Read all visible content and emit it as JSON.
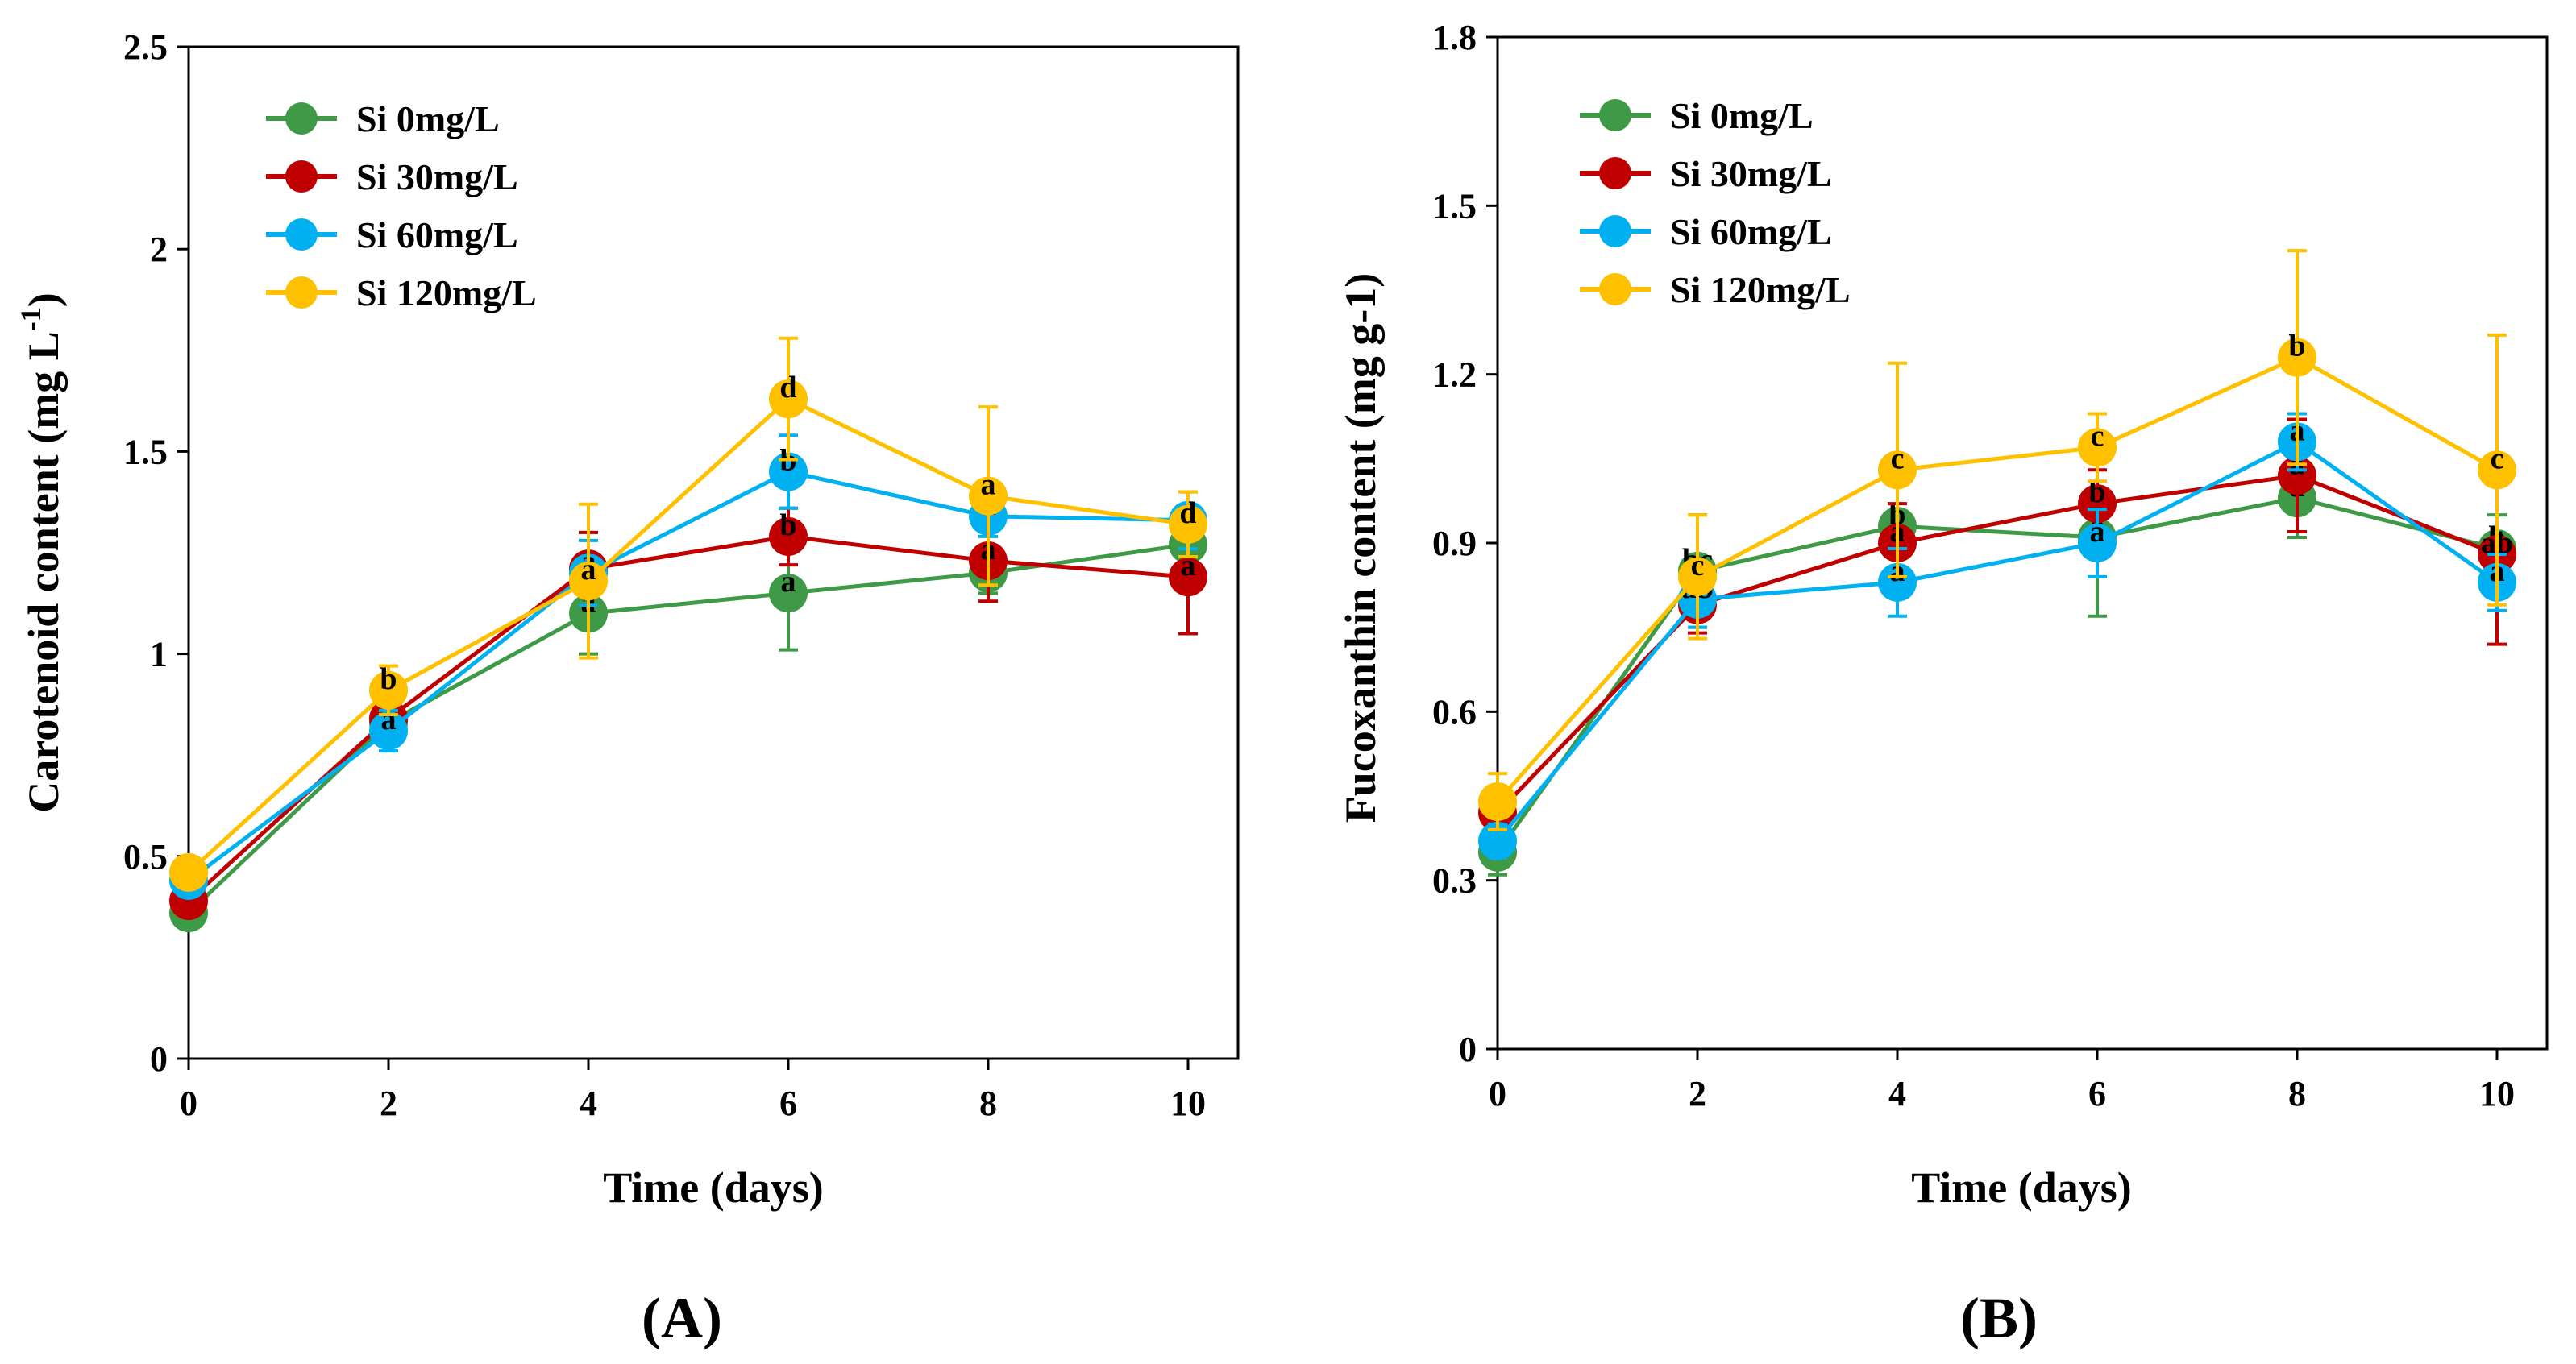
{
  "chart_data": [
    {
      "type": "line",
      "panel_label": "(A)",
      "xlabel": "Time (days)",
      "ylabel_main": "Carotenoid content (mg L",
      "ylabel_sup": "-1",
      "ylabel_close": ")",
      "x": [
        0,
        2,
        4,
        6,
        8,
        10
      ],
      "xticks": [
        "0",
        "2",
        "4",
        "6",
        "8",
        "10"
      ],
      "xlim": [
        0,
        10.5
      ],
      "ylim": [
        0,
        2.5
      ],
      "yticks": [
        "0",
        "0.5",
        "1",
        "1.5",
        "2",
        "2.5"
      ],
      "ytick_values": [
        0,
        0.5,
        1,
        1.5,
        2,
        2.5
      ],
      "legend_position": "top-left",
      "series": [
        {
          "name": "Si 0mg/L",
          "color": "#3f9a47",
          "values": [
            0.36,
            0.83,
            1.1,
            1.15,
            1.2,
            1.27
          ],
          "errors": [
            0.02,
            0.05,
            0.1,
            0.14,
            0.05,
            0.06
          ],
          "letters": [
            "",
            "a",
            "a",
            "a",
            "a",
            "b"
          ]
        },
        {
          "name": "Si 30mg/L",
          "color": "#c00000",
          "values": [
            0.39,
            0.84,
            1.21,
            1.29,
            1.23,
            1.19
          ],
          "errors": [
            0.02,
            0.05,
            0.09,
            0.07,
            0.1,
            0.14
          ],
          "letters": [
            "",
            "a",
            "a",
            "b",
            "a",
            "a"
          ]
        },
        {
          "name": "Si 60mg/L",
          "color": "#00b0f0",
          "values": [
            0.44,
            0.81,
            1.2,
            1.45,
            1.34,
            1.33
          ],
          "errors": [
            0.02,
            0.05,
            0.08,
            0.09,
            0.05,
            0.07
          ],
          "letters": [
            "",
            "a",
            "a",
            "b",
            "a",
            "c"
          ]
        },
        {
          "name": "Si 120mg/L",
          "color": "#ffc000",
          "values": [
            0.46,
            0.91,
            1.18,
            1.63,
            1.39,
            1.32
          ],
          "errors": [
            0.02,
            0.06,
            0.19,
            0.15,
            0.22,
            0.08
          ],
          "letters": [
            "",
            "b",
            "a",
            "d",
            "a",
            "d"
          ]
        }
      ]
    },
    {
      "type": "line",
      "panel_label": "(B)",
      "xlabel": "Time (days)",
      "ylabel_main": "Fucoxanthin content (mg g-1)",
      "x": [
        0,
        2,
        4,
        6,
        8,
        10
      ],
      "xticks": [
        "0",
        "2",
        "4",
        "6",
        "8",
        "10"
      ],
      "xlim": [
        0,
        10.5
      ],
      "ylim": [
        0,
        1.8
      ],
      "yticks": [
        "0",
        "0.3",
        "0.6",
        "0.9",
        "1.2",
        "1.5",
        "1.8"
      ],
      "ytick_values": [
        0,
        0.3,
        0.6,
        0.9,
        1.2,
        1.5,
        1.8
      ],
      "legend_position": "top-left",
      "series": [
        {
          "name": "Si 0mg/L",
          "color": "#3f9a47",
          "values": [
            0.35,
            0.85,
            0.93,
            0.91,
            0.98,
            0.89
          ],
          "errors": [
            0.04,
            0.1,
            0.08,
            0.14,
            0.07,
            0.06
          ],
          "letters": [
            "",
            "bc",
            "b",
            "a",
            "a",
            "b"
          ]
        },
        {
          "name": "Si 30mg/L",
          "color": "#c00000",
          "values": [
            0.42,
            0.79,
            0.9,
            0.97,
            1.02,
            0.88
          ],
          "errors": [
            0.04,
            0.05,
            0.07,
            0.06,
            0.1,
            0.16
          ],
          "letters": [
            "",
            "d",
            "a",
            "b",
            "a",
            "ab"
          ]
        },
        {
          "name": "Si 60mg/L",
          "color": "#00b0f0",
          "values": [
            0.37,
            0.8,
            0.83,
            0.9,
            1.08,
            0.83
          ],
          "errors": [
            0.03,
            0.05,
            0.06,
            0.06,
            0.05,
            0.05
          ],
          "letters": [
            "",
            "ab",
            "a",
            "a",
            "a",
            "a"
          ]
        },
        {
          "name": "Si 120mg/L",
          "color": "#ffc000",
          "values": [
            0.44,
            0.84,
            1.03,
            1.07,
            1.23,
            1.03
          ],
          "errors": [
            0.05,
            0.11,
            0.19,
            0.06,
            0.19,
            0.24
          ],
          "letters": [
            "",
            "c",
            "c",
            "c",
            "b",
            "c"
          ]
        }
      ]
    }
  ]
}
